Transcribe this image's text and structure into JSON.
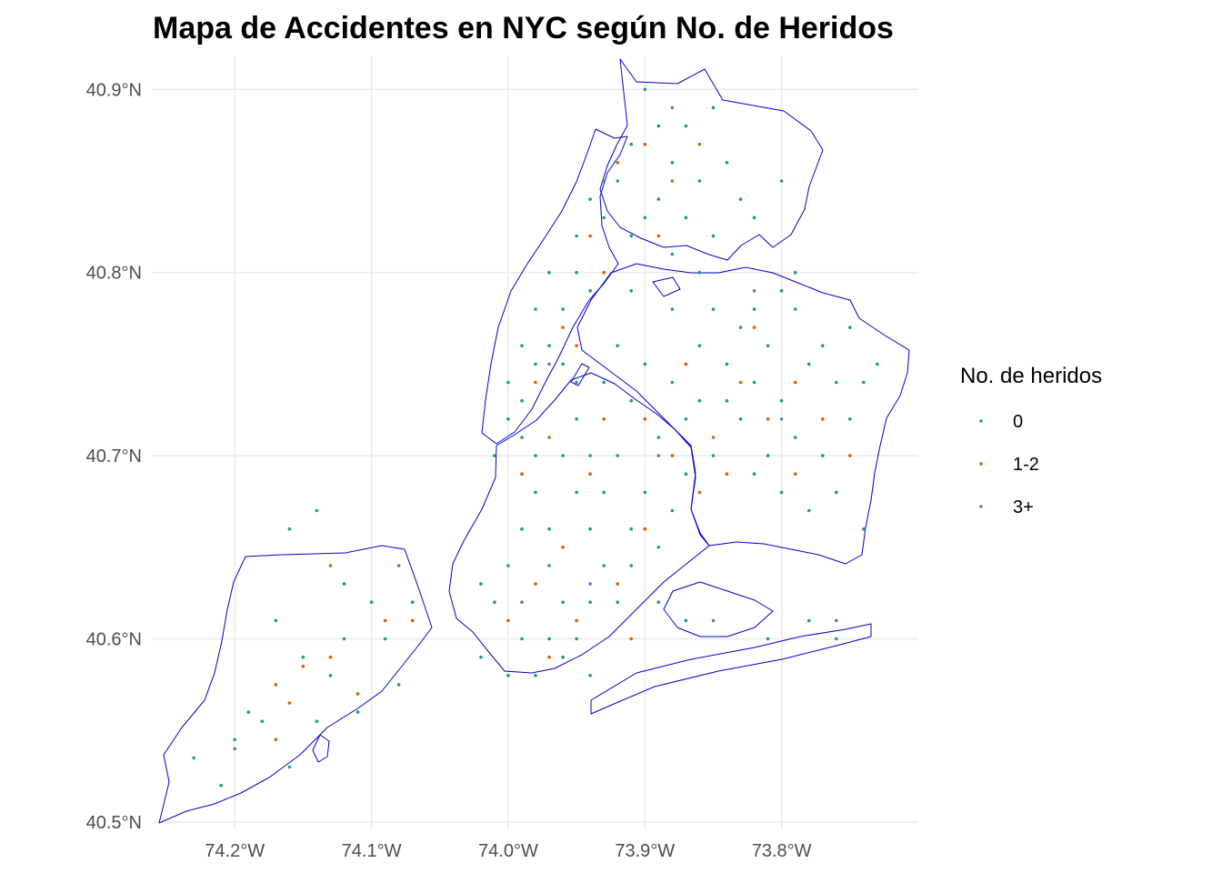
{
  "title": "Mapa de Accidentes en NYC según No. de Heridos",
  "chart_data": {
    "type": "scatter",
    "x_axis": {
      "range": [
        -74.26,
        -73.7
      ],
      "ticks": [
        {
          "value": -74.2,
          "label": "74.2°W"
        },
        {
          "value": -74.1,
          "label": "74.1°W"
        },
        {
          "value": -74.0,
          "label": "74.0°W"
        },
        {
          "value": -73.9,
          "label": "73.9°W"
        },
        {
          "value": -73.8,
          "label": "73.8°W"
        }
      ]
    },
    "y_axis": {
      "range": [
        40.496,
        40.918
      ],
      "ticks": [
        {
          "value": 40.5,
          "label": "40.5°N"
        },
        {
          "value": 40.6,
          "label": "40.6°N"
        },
        {
          "value": 40.7,
          "label": "40.7°N"
        },
        {
          "value": 40.8,
          "label": "40.8°N"
        },
        {
          "value": 40.9,
          "label": "40.9°N"
        }
      ]
    },
    "grid": true,
    "boundary_color": "#0000cc",
    "legend": {
      "title": "No. de heridos",
      "placement": "right",
      "entries": [
        {
          "label": "0",
          "color": "#1b9e77"
        },
        {
          "label": "1-2",
          "color": "#d95f02"
        },
        {
          "label": "3+",
          "color": "#7570b3"
        }
      ]
    },
    "series": [
      {
        "name": "0",
        "color": "#1b9e77",
        "points": [
          [
            -74.18,
            40.555
          ],
          [
            -74.19,
            40.56
          ],
          [
            -74.23,
            40.535
          ],
          [
            -74.21,
            40.52
          ],
          [
            -74.16,
            40.66
          ],
          [
            -74.14,
            40.67
          ],
          [
            -74.12,
            40.63
          ],
          [
            -74.1,
            40.62
          ],
          [
            -74.08,
            40.64
          ],
          [
            -74.17,
            40.61
          ],
          [
            -74.15,
            40.59
          ],
          [
            -74.13,
            40.58
          ],
          [
            -74.11,
            40.56
          ],
          [
            -74.09,
            40.6
          ],
          [
            -74.07,
            40.62
          ],
          [
            -74.16,
            40.53
          ],
          [
            -74.2,
            40.545
          ],
          [
            -74.14,
            40.555
          ],
          [
            -74.08,
            40.575
          ],
          [
            -74.12,
            40.6
          ],
          [
            -73.9,
            40.9
          ],
          [
            -73.87,
            40.88
          ],
          [
            -73.85,
            40.89
          ],
          [
            -73.88,
            40.86
          ],
          [
            -73.91,
            40.87
          ],
          [
            -73.86,
            40.85
          ],
          [
            -73.84,
            40.86
          ],
          [
            -73.89,
            40.84
          ],
          [
            -73.92,
            40.85
          ],
          [
            -73.9,
            40.83
          ],
          [
            -73.87,
            40.83
          ],
          [
            -73.85,
            40.82
          ],
          [
            -73.83,
            40.84
          ],
          [
            -73.88,
            40.81
          ],
          [
            -73.91,
            40.82
          ],
          [
            -73.93,
            40.83
          ],
          [
            -73.86,
            40.8
          ],
          [
            -73.82,
            40.83
          ],
          [
            -73.8,
            40.85
          ],
          [
            -73.89,
            40.88
          ],
          [
            -73.95,
            40.8
          ],
          [
            -73.96,
            40.78
          ],
          [
            -73.97,
            40.76
          ],
          [
            -73.98,
            40.75
          ],
          [
            -73.99,
            40.73
          ],
          [
            -74.0,
            40.72
          ],
          [
            -73.98,
            40.78
          ],
          [
            -73.95,
            40.82
          ],
          [
            -73.94,
            40.79
          ],
          [
            -73.97,
            40.8
          ],
          [
            -73.99,
            40.76
          ],
          [
            -74.0,
            40.74
          ],
          [
            -73.93,
            40.85
          ],
          [
            -73.94,
            40.84
          ],
          [
            -73.96,
            40.75
          ],
          [
            -73.92,
            40.76
          ],
          [
            -73.9,
            40.75
          ],
          [
            -73.88,
            40.74
          ],
          [
            -73.86,
            40.76
          ],
          [
            -73.84,
            40.75
          ],
          [
            -73.82,
            40.74
          ],
          [
            -73.8,
            40.73
          ],
          [
            -73.78,
            40.75
          ],
          [
            -73.76,
            40.74
          ],
          [
            -73.75,
            40.72
          ],
          [
            -73.77,
            40.7
          ],
          [
            -73.79,
            40.71
          ],
          [
            -73.81,
            40.7
          ],
          [
            -73.83,
            40.72
          ],
          [
            -73.85,
            40.7
          ],
          [
            -73.87,
            40.72
          ],
          [
            -73.89,
            40.71
          ],
          [
            -73.91,
            40.73
          ],
          [
            -73.93,
            40.74
          ],
          [
            -73.85,
            40.78
          ],
          [
            -73.83,
            40.77
          ],
          [
            -73.81,
            40.76
          ],
          [
            -73.79,
            40.78
          ],
          [
            -73.77,
            40.76
          ],
          [
            -73.74,
            40.74
          ],
          [
            -73.76,
            40.68
          ],
          [
            -73.78,
            40.67
          ],
          [
            -73.8,
            40.68
          ],
          [
            -73.82,
            40.69
          ],
          [
            -73.74,
            40.66
          ],
          [
            -73.96,
            40.7
          ],
          [
            -73.95,
            40.68
          ],
          [
            -73.94,
            40.66
          ],
          [
            -73.93,
            40.64
          ],
          [
            -73.92,
            40.62
          ],
          [
            -73.98,
            40.68
          ],
          [
            -73.99,
            40.66
          ],
          [
            -74.0,
            40.64
          ],
          [
            -74.01,
            40.62
          ],
          [
            -74.02,
            40.63
          ],
          [
            -73.97,
            40.64
          ],
          [
            -73.96,
            40.62
          ],
          [
            -73.95,
            40.6
          ],
          [
            -73.97,
            40.6
          ],
          [
            -73.99,
            40.6
          ],
          [
            -73.9,
            40.68
          ],
          [
            -73.91,
            40.66
          ],
          [
            -73.89,
            40.65
          ],
          [
            -73.88,
            40.67
          ],
          [
            -73.87,
            40.69
          ],
          [
            -74.02,
            40.59
          ],
          [
            -74.0,
            40.58
          ],
          [
            -73.98,
            40.58
          ],
          [
            -73.96,
            40.59
          ],
          [
            -73.94,
            40.62
          ],
          [
            -73.92,
            40.7
          ],
          [
            -73.94,
            40.7
          ],
          [
            -73.98,
            40.7
          ],
          [
            -74.01,
            40.7
          ],
          [
            -73.93,
            40.68
          ],
          [
            -73.87,
            40.61
          ],
          [
            -73.89,
            40.62
          ],
          [
            -73.91,
            40.64
          ],
          [
            -73.94,
            40.58
          ],
          [
            -73.81,
            40.6
          ],
          [
            -73.76,
            40.6
          ],
          [
            -73.78,
            40.61
          ],
          [
            -73.95,
            40.74
          ],
          [
            -73.91,
            40.79
          ],
          [
            -73.88,
            40.78
          ],
          [
            -73.86,
            40.73
          ],
          [
            -73.84,
            40.73
          ],
          [
            -73.82,
            40.78
          ],
          [
            -73.8,
            40.79
          ],
          [
            -73.79,
            40.8
          ],
          [
            -73.75,
            40.77
          ],
          [
            -73.73,
            40.75
          ],
          [
            -73.99,
            40.71
          ],
          [
            -73.95,
            40.72
          ],
          [
            -73.97,
            40.66
          ]
        ]
      },
      {
        "name": "1-2",
        "color": "#d95f02",
        "points": [
          [
            -74.17,
            40.575
          ],
          [
            -74.16,
            40.565
          ],
          [
            -74.15,
            40.585
          ],
          [
            -74.13,
            40.59
          ],
          [
            -74.11,
            40.57
          ],
          [
            -74.09,
            40.61
          ],
          [
            -74.07,
            40.61
          ],
          [
            -74.13,
            40.64
          ],
          [
            -74.17,
            40.545
          ],
          [
            -73.9,
            40.87
          ],
          [
            -73.88,
            40.85
          ],
          [
            -73.86,
            40.87
          ],
          [
            -73.92,
            40.86
          ],
          [
            -73.89,
            40.82
          ],
          [
            -73.94,
            40.82
          ],
          [
            -73.96,
            40.77
          ],
          [
            -73.98,
            40.74
          ],
          [
            -73.95,
            40.76
          ],
          [
            -73.93,
            40.8
          ],
          [
            -73.87,
            40.75
          ],
          [
            -73.83,
            40.74
          ],
          [
            -73.79,
            40.74
          ],
          [
            -73.77,
            40.72
          ],
          [
            -73.81,
            40.72
          ],
          [
            -73.85,
            40.71
          ],
          [
            -73.75,
            40.7
          ],
          [
            -73.79,
            40.69
          ],
          [
            -73.94,
            40.69
          ],
          [
            -73.96,
            40.65
          ],
          [
            -73.98,
            40.63
          ],
          [
            -73.95,
            40.61
          ],
          [
            -73.92,
            40.63
          ],
          [
            -73.9,
            40.66
          ],
          [
            -74.0,
            40.61
          ],
          [
            -73.97,
            40.59
          ],
          [
            -73.91,
            40.6
          ],
          [
            -73.86,
            40.68
          ],
          [
            -73.84,
            40.69
          ],
          [
            -73.88,
            40.7
          ],
          [
            -73.99,
            40.69
          ],
          [
            -73.97,
            40.71
          ],
          [
            -73.93,
            40.72
          ],
          [
            -73.9,
            40.72
          ],
          [
            -73.82,
            40.77
          ]
        ]
      },
      {
        "name": "3+",
        "color": "#7570b3",
        "points": [
          [
            -74.2,
            40.54
          ],
          [
            -73.88,
            40.89
          ],
          [
            -73.82,
            40.79
          ],
          [
            -73.8,
            40.72
          ],
          [
            -73.85,
            40.61
          ],
          [
            -73.99,
            40.62
          ],
          [
            -73.94,
            40.63
          ],
          [
            -73.89,
            40.7
          ],
          [
            -73.76,
            40.61
          ],
          [
            -73.97,
            40.75
          ]
        ]
      }
    ]
  }
}
